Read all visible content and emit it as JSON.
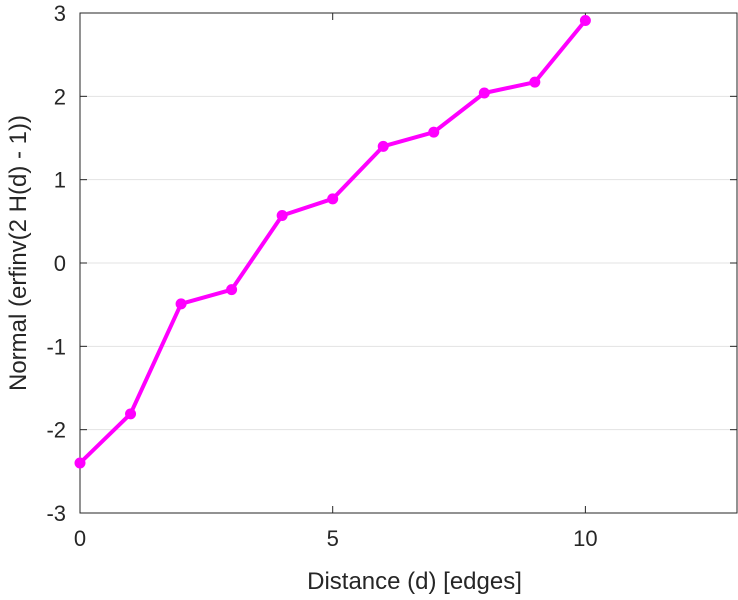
{
  "chart_data": {
    "type": "line",
    "title": "",
    "xlabel": "Distance (d) [edges]",
    "ylabel": "Normal (erfinv(2 H(d) - 1))",
    "xlim": [
      0,
      13
    ],
    "ylim": [
      -3,
      3
    ],
    "xticks": [
      0,
      5,
      10
    ],
    "yticks": [
      -3,
      -2,
      -1,
      0,
      1,
      2,
      3
    ],
    "grid": "horizontal",
    "legend": "none",
    "series": [
      {
        "color": "#ff00ff",
        "marker": "circle",
        "x": [
          0,
          1,
          2,
          3,
          4,
          5,
          6,
          7,
          8,
          9,
          10
        ],
        "y": [
          -2.4,
          -1.81,
          -0.49,
          -0.32,
          0.57,
          0.77,
          1.4,
          1.57,
          2.04,
          2.17,
          2.91
        ]
      }
    ]
  }
}
